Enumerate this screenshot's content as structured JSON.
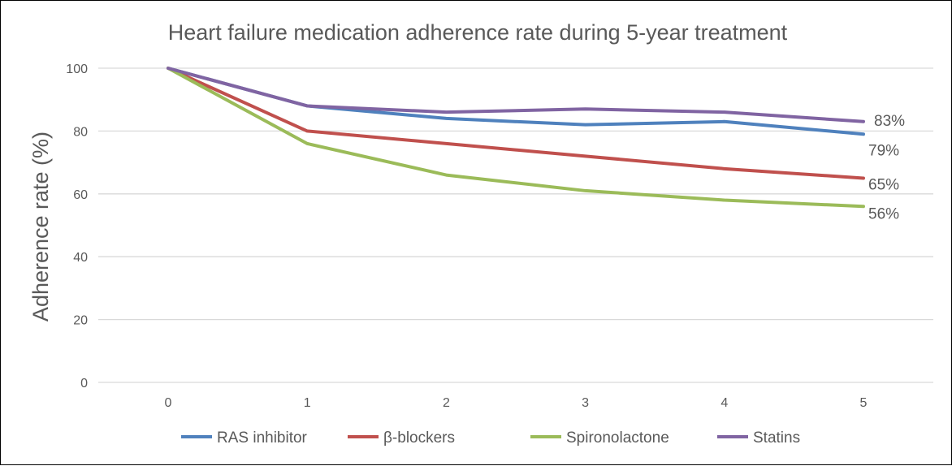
{
  "chart_data": {
    "type": "line",
    "title": "Heart failure medication adherence rate during 5-year treatment",
    "xlabel": "",
    "ylabel": "Adherence rate (%)",
    "x": [
      0,
      1,
      2,
      3,
      4,
      5
    ],
    "ylim": [
      0,
      100
    ],
    "yticks": [
      0,
      20,
      40,
      60,
      80,
      100
    ],
    "grid": true,
    "legend_position": "bottom",
    "series": [
      {
        "name": "RAS inhibitor",
        "color": "#4f81bd",
        "values": [
          100,
          88,
          84,
          82,
          83,
          79
        ],
        "end_label": "79%"
      },
      {
        "name": "β-blockers",
        "color": "#c0504d",
        "values": [
          100,
          80,
          76,
          72,
          68,
          65
        ],
        "end_label": "65%"
      },
      {
        "name": "Spironolactone",
        "color": "#9bbb59",
        "values": [
          100,
          76,
          66,
          61,
          58,
          56
        ],
        "end_label": "56%"
      },
      {
        "name": "Statins",
        "color": "#8064a2",
        "values": [
          100,
          88,
          86,
          87,
          86,
          83
        ],
        "end_label": "83%"
      }
    ]
  }
}
